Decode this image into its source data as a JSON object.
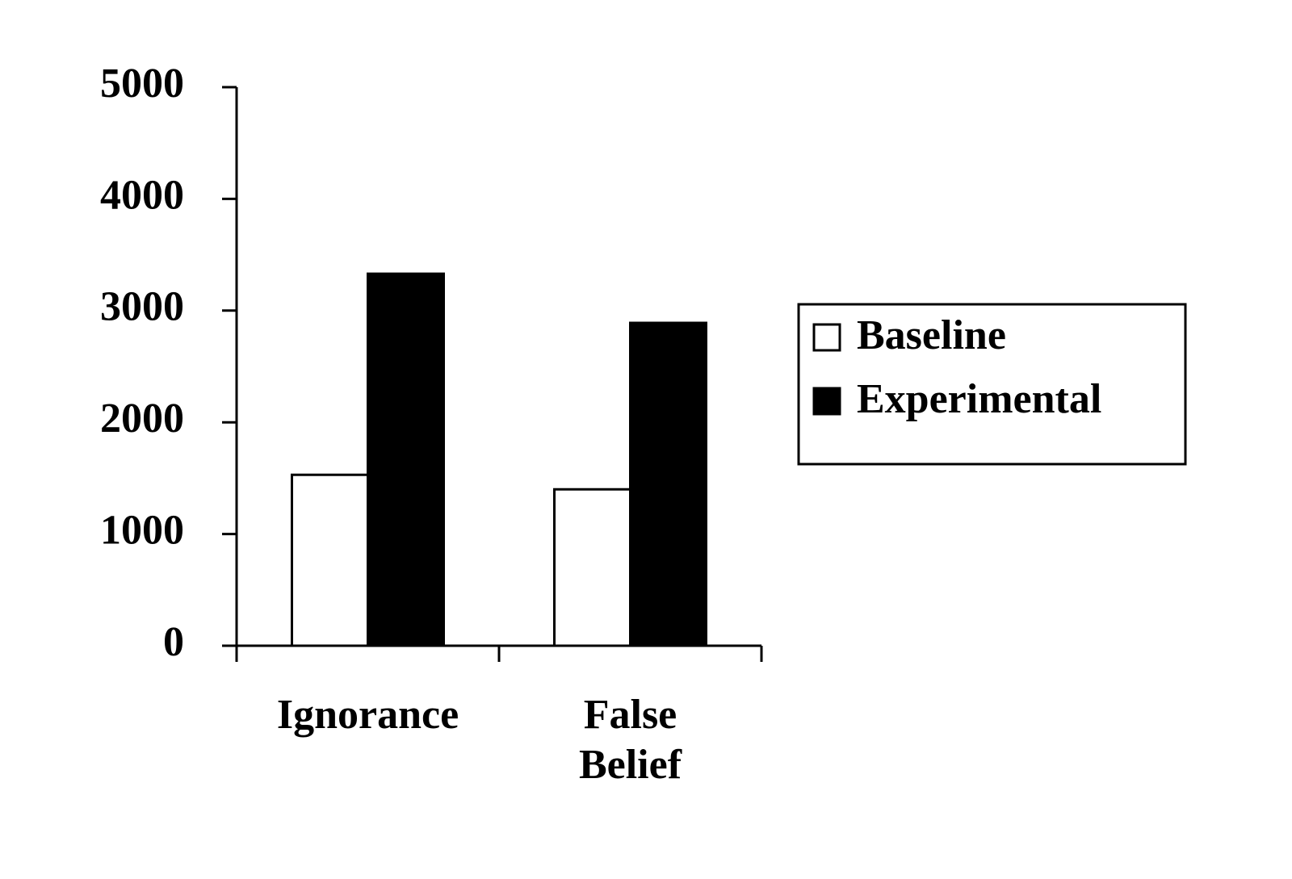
{
  "chart_data": {
    "type": "bar",
    "categories": [
      "Ignorance",
      "False Belief"
    ],
    "series": [
      {
        "name": "Baseline",
        "color": "#ffffff",
        "values": [
          1530,
          1400
        ]
      },
      {
        "name": "Experimental",
        "color": "#000000",
        "values": [
          3330,
          2890
        ]
      }
    ],
    "ylim": [
      0,
      5000
    ],
    "yticks": [
      0,
      1000,
      2000,
      3000,
      4000,
      5000
    ],
    "grid": false,
    "legend": "right"
  }
}
